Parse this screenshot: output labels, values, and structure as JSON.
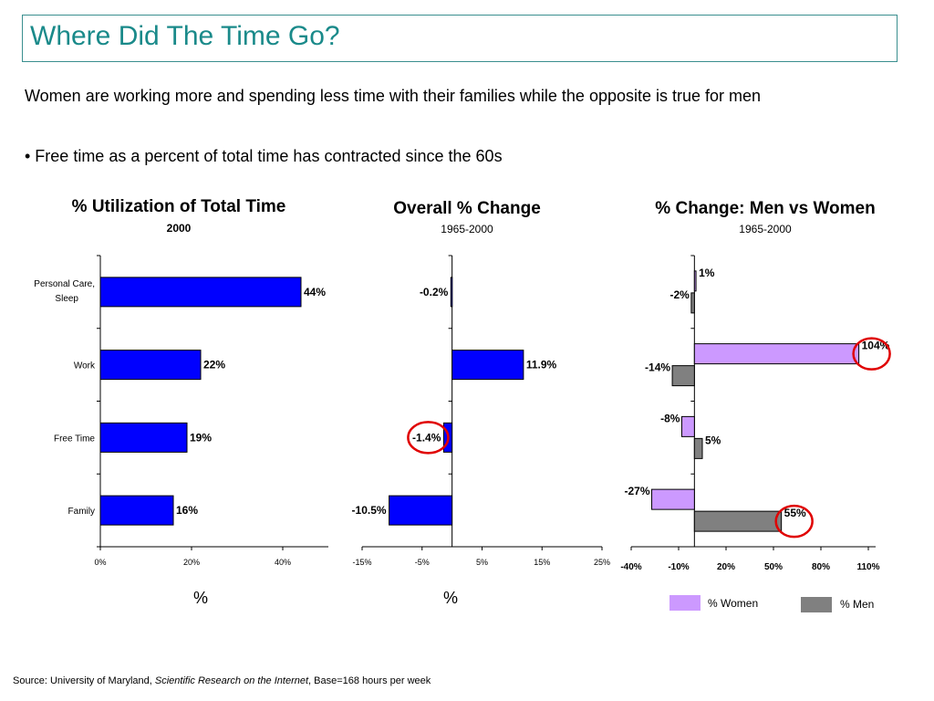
{
  "page": {
    "title": "Where Did The Time Go?",
    "intro": "Women are working more and spending less time with their families while the opposite is true for men",
    "bullet": "• Free time as a percent of total time has contracted since the 60s",
    "source_prefix": "Source: University of Maryland, ",
    "source_italic": "Scientific Research on the Internet",
    "source_suffix": ", Base=168 hours per week",
    "pct_unit_1": "%",
    "pct_unit_2": "%",
    "legend_women": "% Women",
    "legend_men": "% Men"
  },
  "colors": {
    "title": "#1a8a8a",
    "bar_blue": "#0000ff",
    "women": "#cc99ff",
    "men": "#808080",
    "highlight": "#e00000"
  },
  "chart_data": [
    {
      "type": "bar",
      "orientation": "horizontal",
      "title": "% Utilization of Total Time",
      "subtitle": "2000",
      "categories": [
        "Personal Care, Sleep",
        "Work",
        "Free Time",
        "Family"
      ],
      "values": [
        44,
        22,
        19,
        16
      ],
      "value_labels": [
        "44%",
        "22%",
        "19%",
        "16%"
      ],
      "xlim": [
        0,
        50
      ],
      "xticks": [
        0,
        20,
        40
      ],
      "xtick_labels": [
        "0%",
        "20%",
        "40%"
      ]
    },
    {
      "type": "bar",
      "orientation": "horizontal",
      "title": "Overall % Change",
      "subtitle": "1965-2000",
      "categories": [
        "Personal Care, Sleep",
        "Work",
        "Free Time",
        "Family"
      ],
      "values": [
        -0.2,
        11.9,
        -1.4,
        -10.5
      ],
      "value_labels": [
        "-0.2%",
        "11.9%",
        "-1.4%",
        "-10.5%"
      ],
      "xlim": [
        -15,
        25
      ],
      "xticks": [
        -15,
        -5,
        5,
        15,
        25
      ],
      "xtick_labels": [
        "-15%",
        "-5%",
        "5%",
        "15%",
        "25%"
      ],
      "highlighted": [
        "-1.4%"
      ]
    },
    {
      "type": "bar",
      "orientation": "horizontal",
      "title": "% Change: Men vs Women",
      "subtitle": "1965-2000",
      "categories": [
        "Personal Care, Sleep",
        "Work",
        "Free Time",
        "Family"
      ],
      "series": [
        {
          "name": "% Women",
          "values": [
            1,
            104,
            -8,
            -27
          ],
          "labels": [
            "1%",
            "104%",
            "-8%",
            "-27%"
          ]
        },
        {
          "name": "% Men",
          "values": [
            -2,
            -14,
            5,
            55
          ],
          "labels": [
            "-2%",
            "-14%",
            "5%",
            "55%"
          ]
        }
      ],
      "xlim": [
        -40,
        110
      ],
      "xticks": [
        -40,
        -10,
        20,
        50,
        80,
        110
      ],
      "xtick_labels": [
        "-40%",
        "-10%",
        "20%",
        "50%",
        "80%",
        "110%"
      ],
      "highlighted": [
        "104%",
        "55%"
      ],
      "legend": "bottom"
    }
  ]
}
